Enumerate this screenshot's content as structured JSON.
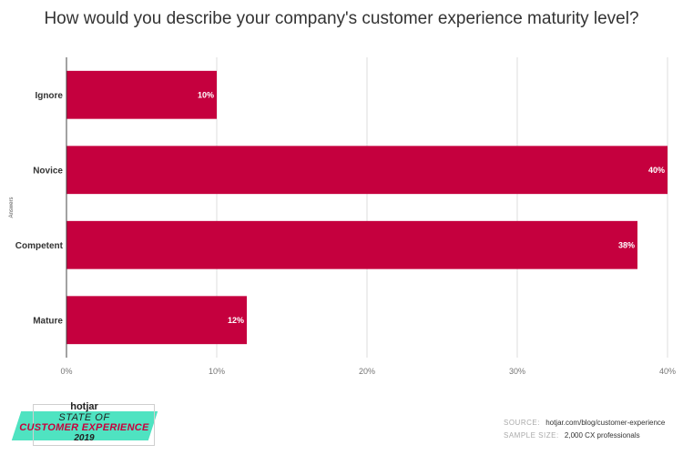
{
  "chart_data": {
    "type": "bar",
    "orientation": "horizontal",
    "title": "How would you describe your company's customer experience maturity level?",
    "ylabel": "Answers",
    "xlabel": "",
    "categories": [
      "Ignore",
      "Novice",
      "Competent",
      "Mature"
    ],
    "values": [
      10,
      40,
      38,
      12
    ],
    "value_labels": [
      "10%",
      "40%",
      "38%",
      "12%"
    ],
    "xlim": [
      0,
      40
    ],
    "x_ticks": [
      0,
      10,
      20,
      30,
      40
    ],
    "x_tick_labels": [
      "0%",
      "10%",
      "20%",
      "30%",
      "40%"
    ],
    "grid": true,
    "bar_color": "#c5003e",
    "grid_color": "#dddddd"
  },
  "logo": {
    "brand": "hotjar",
    "line1": "STATE OF",
    "line2": "CUSTOMER EXPERIENCE",
    "line3": "2019",
    "accent_color": "#4fe3c1"
  },
  "source": {
    "source_key": "SOURCE:",
    "source_value": "hotjar.com/blog/customer-experience",
    "sample_key": "SAMPLE SIZE:",
    "sample_value": "2,000 CX professionals"
  }
}
